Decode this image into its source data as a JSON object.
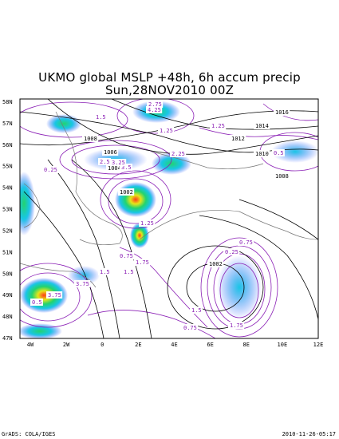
{
  "title": {
    "line1": "UKMO global MSLP +48h, 6h accum precip",
    "line2": "Sun,28NOV2010 00Z"
  },
  "footer": {
    "left": "GrADS: COLA/IGES",
    "right": "2010-11-26-05:17"
  },
  "map": {
    "lat_labels": [
      "58N",
      "57N",
      "56N",
      "55N",
      "54N",
      "53N",
      "52N",
      "51N",
      "50N",
      "49N",
      "48N",
      "47N"
    ],
    "lon_labels": [
      "4W",
      "2W",
      "0",
      "2E",
      "4E",
      "6E",
      "8E",
      "10E",
      "12E"
    ],
    "isobar_labels": [
      "1008",
      "1010",
      "1012",
      "1014",
      "1016",
      "1006",
      "1004",
      "1002",
      "1008",
      "1002"
    ],
    "precip_labels": [
      "2.75",
      "1.5",
      "1.25",
      "3.5",
      "0.25",
      "0.75",
      "1.75",
      "2.25",
      "3.75",
      "0.5",
      "1.25",
      "1.5",
      "0.75",
      "0.75",
      "0.25",
      "1.75",
      "1.5",
      "3.25",
      "4.25",
      "3.75",
      "1.25",
      "0.5",
      "1.5",
      "2.5"
    ],
    "colors": {
      "isobar": "#000000",
      "precip_contour": "#8a1fb5",
      "precip_fill": [
        "#3d5bff",
        "#19c6e6",
        "#22d36f",
        "#e6e619",
        "#ff9c1a",
        "#ff3a1a"
      ]
    }
  }
}
